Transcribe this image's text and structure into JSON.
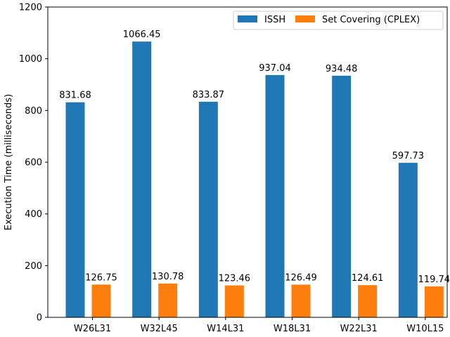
{
  "chart_data": {
    "type": "bar",
    "categories": [
      "W26L31",
      "W32L45",
      "W14L31",
      "W18L31",
      "W22L31",
      "W10L15"
    ],
    "series": [
      {
        "name": "ISSH",
        "values": [
          831.68,
          1066.45,
          833.87,
          937.04,
          934.48,
          597.73
        ],
        "labels": [
          "831.68",
          "1066.45",
          "833.87",
          "937.04",
          "934.48",
          "597.73"
        ],
        "color": "#1f77b4"
      },
      {
        "name": "Set Covering (CPLEX)",
        "values": [
          126.75,
          130.78,
          123.46,
          126.49,
          124.61,
          119.74
        ],
        "labels": [
          "126.75",
          "130.78",
          "123.46",
          "126.49",
          "124.61",
          "119.74"
        ],
        "color": "#ff7f0e"
      }
    ],
    "ylabel": "Execution Time (milliseconds)",
    "xlabel": "",
    "ylim": [
      0,
      1200
    ],
    "yticks": [
      0,
      200,
      400,
      600,
      800,
      1000,
      1200
    ],
    "ytick_labels": [
      "0",
      "200",
      "400",
      "600",
      "800",
      "1000",
      "1200"
    ],
    "legend_position": "top-right",
    "grid": false
  }
}
